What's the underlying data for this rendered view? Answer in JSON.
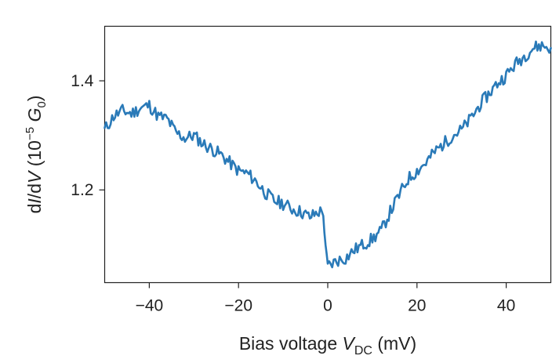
{
  "chart_data": {
    "type": "line",
    "xlabel": {
      "pre": "Bias voltage ",
      "var": "V",
      "sub": "DC",
      "post": " (mV)"
    },
    "ylabel": {
      "pre": "d",
      "var1": "I",
      "mid": "/d",
      "var2": "V",
      "open": " (10",
      "sup": "−5",
      "space": " ",
      "var3": "G",
      "sub": "0",
      "close": ")"
    },
    "xlim": [
      -50,
      50
    ],
    "ylim": [
      1.03,
      1.5
    ],
    "xticks": [
      -40,
      -20,
      0,
      20,
      40
    ],
    "xtick_labels": [
      "−40",
      "−20",
      "0",
      "20",
      "40"
    ],
    "yticks": [
      1.2,
      1.4
    ],
    "ytick_labels": [
      "1.2",
      "1.4"
    ],
    "grid": false,
    "series": [
      {
        "color": "#2a7ab8",
        "x": [
          -50,
          -48,
          -46,
          -44,
          -42,
          -40,
          -38,
          -36,
          -34,
          -32,
          -30,
          -28,
          -26,
          -24,
          -22,
          -20,
          -18,
          -16,
          -14,
          -12,
          -10,
          -8,
          -6,
          -4,
          -2,
          -1,
          -0.5,
          0,
          1,
          2,
          4,
          6,
          8,
          10,
          12,
          14,
          16,
          18,
          20,
          22,
          24,
          26,
          28,
          30,
          32,
          34,
          36,
          38,
          40,
          42,
          44,
          46,
          48,
          50
        ],
        "y": [
          1.31,
          1.335,
          1.345,
          1.34,
          1.35,
          1.355,
          1.335,
          1.33,
          1.305,
          1.295,
          1.3,
          1.285,
          1.275,
          1.265,
          1.25,
          1.235,
          1.23,
          1.215,
          1.195,
          1.18,
          1.175,
          1.165,
          1.16,
          1.15,
          1.16,
          1.16,
          1.09,
          1.06,
          1.065,
          1.07,
          1.075,
          1.09,
          1.1,
          1.11,
          1.125,
          1.16,
          1.19,
          1.22,
          1.235,
          1.25,
          1.27,
          1.285,
          1.3,
          1.31,
          1.33,
          1.355,
          1.375,
          1.395,
          1.41,
          1.43,
          1.445,
          1.46,
          1.465,
          1.46
        ]
      }
    ]
  }
}
